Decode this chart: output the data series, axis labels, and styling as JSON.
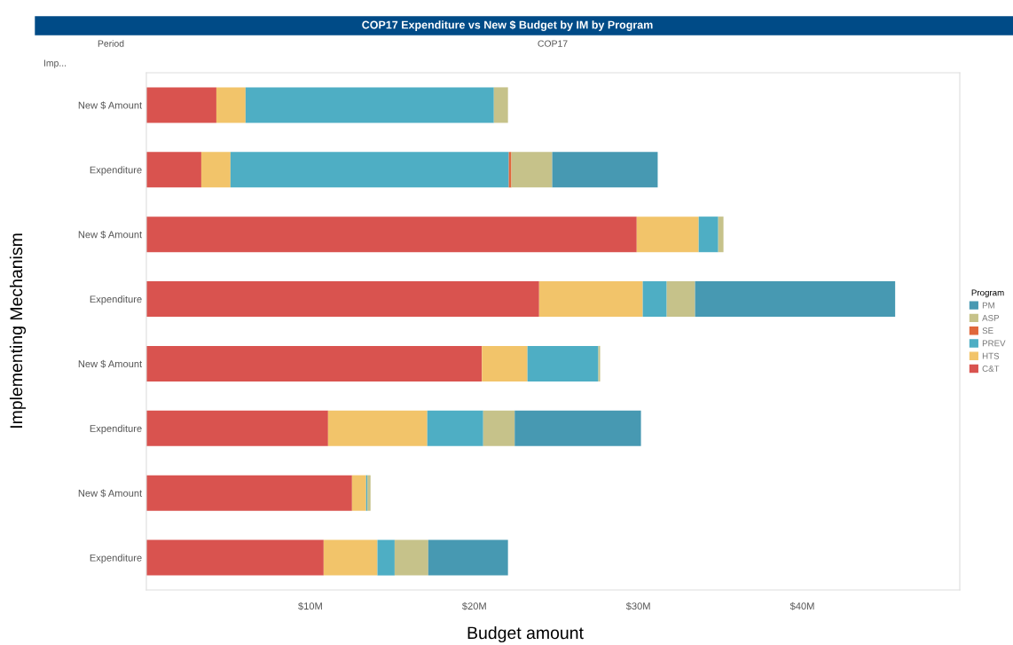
{
  "chart_data": {
    "type": "bar",
    "orientation": "horizontal",
    "stacked": true,
    "title": "COP17 Expenditure vs New $ Budget by IM by Program",
    "xlabel": "Budget amount",
    "ylabel": "Implementing Mechanism",
    "legend_title": "Program",
    "legend": "right",
    "annotations": [
      "Imp...",
      "Period",
      "COP17"
    ],
    "categories": [
      "New $ Amount",
      "Expenditure",
      "New $ Amount",
      "Expenditure",
      "New $ Amount",
      "Expenditure",
      "New $ Amount",
      "Expenditure"
    ],
    "xlim": [
      0,
      49.6
    ],
    "xticks": [
      {
        "value": 10,
        "label": "$10M"
      },
      {
        "value": 20,
        "label": "$20M"
      },
      {
        "value": 30,
        "label": "$30M"
      },
      {
        "value": 40,
        "label": "$40M"
      }
    ],
    "series": [
      {
        "name": "C&T",
        "color": "#d9534f",
        "values": [
          4.27,
          3.35,
          29.9,
          23.95,
          20.46,
          11.08,
          12.54,
          10.81
        ]
      },
      {
        "name": "HTS",
        "color": "#f2c46a",
        "values": [
          1.78,
          1.78,
          3.78,
          6.32,
          2.78,
          6.05,
          0.86,
          3.28
        ]
      },
      {
        "name": "PREV",
        "color": "#4eaec4",
        "values": [
          15.14,
          16.97,
          1.19,
          1.46,
          4.32,
          3.41,
          0.08,
          1.05
        ]
      },
      {
        "name": "SE",
        "color": "#e0683c",
        "values": [
          0,
          0.16,
          0,
          0,
          0,
          0,
          0,
          0
        ]
      },
      {
        "name": "ASP",
        "color": "#c6c28a",
        "values": [
          0.86,
          2.49,
          0.32,
          1.73,
          0.11,
          1.92,
          0.19,
          2.05
        ]
      },
      {
        "name": "PM",
        "color": "#4799b2",
        "values": [
          0,
          6.43,
          0,
          12.2,
          0,
          7.7,
          0,
          4.86
        ]
      }
    ]
  }
}
